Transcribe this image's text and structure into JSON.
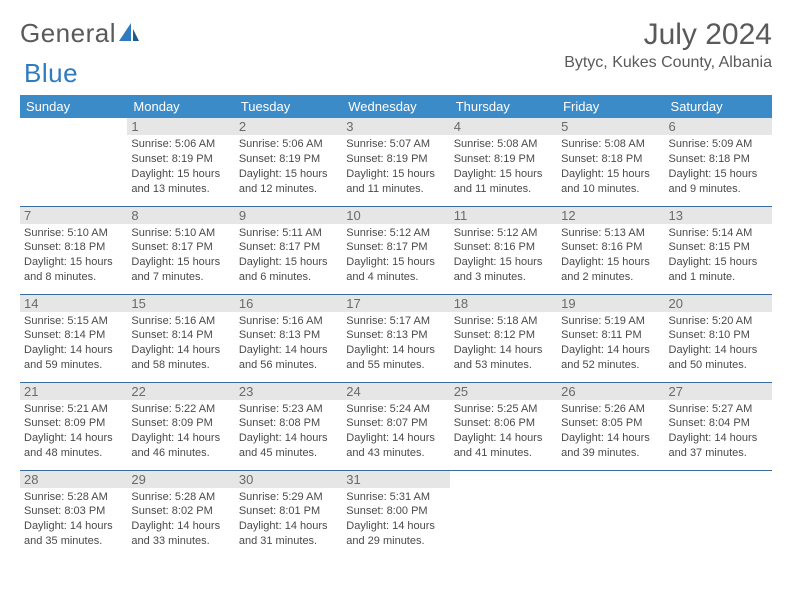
{
  "brand": {
    "part1": "General",
    "part2": "Blue"
  },
  "title": "July 2024",
  "location": "Bytyc, Kukes County, Albania",
  "colors": {
    "header_bg": "#3b8bc9",
    "header_text": "#ffffff",
    "row_divider": "#3b6ca0",
    "daynum_bg": "#e6e6e6",
    "daynum_text": "#6a6a6a",
    "body_text": "#4a4a4a",
    "title_text": "#5a5a5a",
    "logo_gray": "#5a5a5a",
    "logo_blue": "#2f7bbf",
    "background": "#ffffff"
  },
  "weekdays": [
    "Sunday",
    "Monday",
    "Tuesday",
    "Wednesday",
    "Thursday",
    "Friday",
    "Saturday"
  ],
  "weeks": [
    [
      null,
      {
        "n": "1",
        "sr": "Sunrise: 5:06 AM",
        "ss": "Sunset: 8:19 PM",
        "dl1": "Daylight: 15 hours",
        "dl2": "and 13 minutes."
      },
      {
        "n": "2",
        "sr": "Sunrise: 5:06 AM",
        "ss": "Sunset: 8:19 PM",
        "dl1": "Daylight: 15 hours",
        "dl2": "and 12 minutes."
      },
      {
        "n": "3",
        "sr": "Sunrise: 5:07 AM",
        "ss": "Sunset: 8:19 PM",
        "dl1": "Daylight: 15 hours",
        "dl2": "and 11 minutes."
      },
      {
        "n": "4",
        "sr": "Sunrise: 5:08 AM",
        "ss": "Sunset: 8:19 PM",
        "dl1": "Daylight: 15 hours",
        "dl2": "and 11 minutes."
      },
      {
        "n": "5",
        "sr": "Sunrise: 5:08 AM",
        "ss": "Sunset: 8:18 PM",
        "dl1": "Daylight: 15 hours",
        "dl2": "and 10 minutes."
      },
      {
        "n": "6",
        "sr": "Sunrise: 5:09 AM",
        "ss": "Sunset: 8:18 PM",
        "dl1": "Daylight: 15 hours",
        "dl2": "and 9 minutes."
      }
    ],
    [
      {
        "n": "7",
        "sr": "Sunrise: 5:10 AM",
        "ss": "Sunset: 8:18 PM",
        "dl1": "Daylight: 15 hours",
        "dl2": "and 8 minutes."
      },
      {
        "n": "8",
        "sr": "Sunrise: 5:10 AM",
        "ss": "Sunset: 8:17 PM",
        "dl1": "Daylight: 15 hours",
        "dl2": "and 7 minutes."
      },
      {
        "n": "9",
        "sr": "Sunrise: 5:11 AM",
        "ss": "Sunset: 8:17 PM",
        "dl1": "Daylight: 15 hours",
        "dl2": "and 6 minutes."
      },
      {
        "n": "10",
        "sr": "Sunrise: 5:12 AM",
        "ss": "Sunset: 8:17 PM",
        "dl1": "Daylight: 15 hours",
        "dl2": "and 4 minutes."
      },
      {
        "n": "11",
        "sr": "Sunrise: 5:12 AM",
        "ss": "Sunset: 8:16 PM",
        "dl1": "Daylight: 15 hours",
        "dl2": "and 3 minutes."
      },
      {
        "n": "12",
        "sr": "Sunrise: 5:13 AM",
        "ss": "Sunset: 8:16 PM",
        "dl1": "Daylight: 15 hours",
        "dl2": "and 2 minutes."
      },
      {
        "n": "13",
        "sr": "Sunrise: 5:14 AM",
        "ss": "Sunset: 8:15 PM",
        "dl1": "Daylight: 15 hours",
        "dl2": "and 1 minute."
      }
    ],
    [
      {
        "n": "14",
        "sr": "Sunrise: 5:15 AM",
        "ss": "Sunset: 8:14 PM",
        "dl1": "Daylight: 14 hours",
        "dl2": "and 59 minutes."
      },
      {
        "n": "15",
        "sr": "Sunrise: 5:16 AM",
        "ss": "Sunset: 8:14 PM",
        "dl1": "Daylight: 14 hours",
        "dl2": "and 58 minutes."
      },
      {
        "n": "16",
        "sr": "Sunrise: 5:16 AM",
        "ss": "Sunset: 8:13 PM",
        "dl1": "Daylight: 14 hours",
        "dl2": "and 56 minutes."
      },
      {
        "n": "17",
        "sr": "Sunrise: 5:17 AM",
        "ss": "Sunset: 8:13 PM",
        "dl1": "Daylight: 14 hours",
        "dl2": "and 55 minutes."
      },
      {
        "n": "18",
        "sr": "Sunrise: 5:18 AM",
        "ss": "Sunset: 8:12 PM",
        "dl1": "Daylight: 14 hours",
        "dl2": "and 53 minutes."
      },
      {
        "n": "19",
        "sr": "Sunrise: 5:19 AM",
        "ss": "Sunset: 8:11 PM",
        "dl1": "Daylight: 14 hours",
        "dl2": "and 52 minutes."
      },
      {
        "n": "20",
        "sr": "Sunrise: 5:20 AM",
        "ss": "Sunset: 8:10 PM",
        "dl1": "Daylight: 14 hours",
        "dl2": "and 50 minutes."
      }
    ],
    [
      {
        "n": "21",
        "sr": "Sunrise: 5:21 AM",
        "ss": "Sunset: 8:09 PM",
        "dl1": "Daylight: 14 hours",
        "dl2": "and 48 minutes."
      },
      {
        "n": "22",
        "sr": "Sunrise: 5:22 AM",
        "ss": "Sunset: 8:09 PM",
        "dl1": "Daylight: 14 hours",
        "dl2": "and 46 minutes."
      },
      {
        "n": "23",
        "sr": "Sunrise: 5:23 AM",
        "ss": "Sunset: 8:08 PM",
        "dl1": "Daylight: 14 hours",
        "dl2": "and 45 minutes."
      },
      {
        "n": "24",
        "sr": "Sunrise: 5:24 AM",
        "ss": "Sunset: 8:07 PM",
        "dl1": "Daylight: 14 hours",
        "dl2": "and 43 minutes."
      },
      {
        "n": "25",
        "sr": "Sunrise: 5:25 AM",
        "ss": "Sunset: 8:06 PM",
        "dl1": "Daylight: 14 hours",
        "dl2": "and 41 minutes."
      },
      {
        "n": "26",
        "sr": "Sunrise: 5:26 AM",
        "ss": "Sunset: 8:05 PM",
        "dl1": "Daylight: 14 hours",
        "dl2": "and 39 minutes."
      },
      {
        "n": "27",
        "sr": "Sunrise: 5:27 AM",
        "ss": "Sunset: 8:04 PM",
        "dl1": "Daylight: 14 hours",
        "dl2": "and 37 minutes."
      }
    ],
    [
      {
        "n": "28",
        "sr": "Sunrise: 5:28 AM",
        "ss": "Sunset: 8:03 PM",
        "dl1": "Daylight: 14 hours",
        "dl2": "and 35 minutes."
      },
      {
        "n": "29",
        "sr": "Sunrise: 5:28 AM",
        "ss": "Sunset: 8:02 PM",
        "dl1": "Daylight: 14 hours",
        "dl2": "and 33 minutes."
      },
      {
        "n": "30",
        "sr": "Sunrise: 5:29 AM",
        "ss": "Sunset: 8:01 PM",
        "dl1": "Daylight: 14 hours",
        "dl2": "and 31 minutes."
      },
      {
        "n": "31",
        "sr": "Sunrise: 5:31 AM",
        "ss": "Sunset: 8:00 PM",
        "dl1": "Daylight: 14 hours",
        "dl2": "and 29 minutes."
      },
      null,
      null,
      null
    ]
  ]
}
